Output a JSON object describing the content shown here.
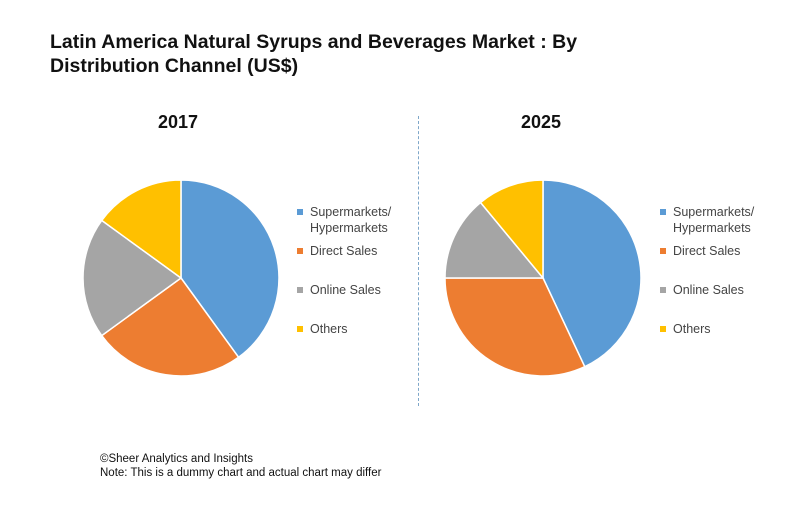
{
  "title": "Latin America Natural Syrups and Beverages Market : By Distribution Channel (US$)",
  "footer": {
    "copyright": "©Sheer Analytics and Insights",
    "note": "Note: This is a dummy chart and actual chart may differ"
  },
  "colors": {
    "supermarkets": "#5B9BD5",
    "direct": "#ED7D31",
    "online": "#A5A5A5",
    "others": "#FFC000"
  },
  "chart_data": [
    {
      "type": "pie",
      "title": "2017",
      "categories": [
        "Supermarkets/ Hypermarkets",
        "Direct Sales",
        "Online Sales",
        "Others"
      ],
      "values": [
        40,
        25,
        20,
        15
      ],
      "legend_position": "right"
    },
    {
      "type": "pie",
      "title": "2025",
      "categories": [
        "Supermarkets/ Hypermarkets",
        "Direct Sales",
        "Online Sales",
        "Others"
      ],
      "values": [
        43,
        32,
        14,
        11
      ],
      "legend_position": "right"
    }
  ],
  "legend": {
    "items": [
      {
        "line1": "Supermarkets/",
        "line2": "Hypermarkets",
        "color": "#5B9BD5"
      },
      {
        "line1": "Direct Sales",
        "line2": "",
        "color": "#ED7D31"
      },
      {
        "line1": "Online Sales",
        "line2": "",
        "color": "#A5A5A5"
      },
      {
        "line1": "Others",
        "line2": "",
        "color": "#FFC000"
      }
    ]
  }
}
